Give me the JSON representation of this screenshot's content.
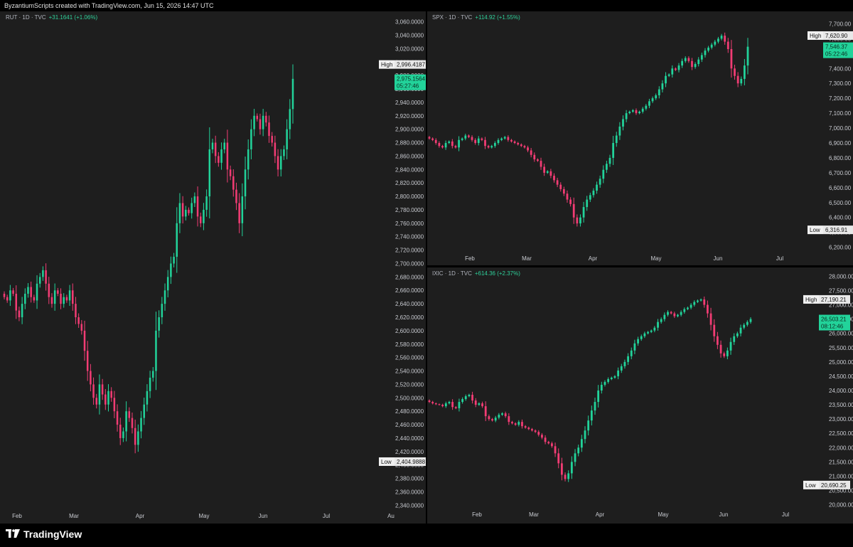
{
  "header": {
    "attribution": "ByzantiumScripts created with TradingView.com, Jun 15, 2026 14:47 UTC"
  },
  "footer": {
    "brand": "TradingView",
    "logo_icon": "tradingview-logo-icon"
  },
  "colors": {
    "up": "#22d39a",
    "down": "#f23c74",
    "background": "#1e1e1e",
    "axis_text": "#c9cbd1",
    "price_tag": "#22d39a"
  },
  "chart_data": [
    {
      "type": "candlestick",
      "symbol": "RUT",
      "legend": {
        "symbol": "RUT",
        "interval": "1D",
        "source": "TVC",
        "change": "+31.1641 (+1.06%)"
      },
      "xlabels": [
        "Feb",
        "Mar",
        "Apr",
        "May",
        "Jun",
        "Jul",
        "Au"
      ],
      "ylabels": [
        "3,060.0000",
        "3,040.0000",
        "3,020.0000",
        "3,000.0000",
        "2,980.0000",
        "2,960.0000",
        "2,940.0000",
        "2,920.0000",
        "2,900.0000",
        "2,880.0000",
        "2,860.0000",
        "2,840.0000",
        "2,820.0000",
        "2,800.0000",
        "2,780.0000",
        "2,760.0000",
        "2,740.0000",
        "2,720.0000",
        "2,700.0000",
        "2,680.0000",
        "2,660.0000",
        "2,640.0000",
        "2,620.0000",
        "2,600.0000",
        "2,580.0000",
        "2,560.0000",
        "2,540.0000",
        "2,520.0000",
        "2,500.0000",
        "2,480.0000",
        "2,460.0000",
        "2,440.0000",
        "2,420.0000",
        "2,400.0000",
        "2,380.0000",
        "2,360.0000",
        "2,340.0000"
      ],
      "ylim": [
        2334,
        3067
      ],
      "high": {
        "label": "High",
        "value": "2,996.4187"
      },
      "low": {
        "label": "Low",
        "value": "2,404.9888"
      },
      "last": {
        "price": "2,975.1564",
        "countdown": "05:27:46"
      },
      "closes": [
        2650,
        2645,
        2660,
        2655,
        2630,
        2620,
        2640,
        2655,
        2665,
        2650,
        2645,
        2670,
        2680,
        2690,
        2670,
        2650,
        2640,
        2660,
        2655,
        2640,
        2650,
        2645,
        2660,
        2640,
        2620,
        2610,
        2600,
        2570,
        2540,
        2520,
        2500,
        2490,
        2520,
        2505,
        2490,
        2510,
        2500,
        2480,
        2460,
        2440,
        2450,
        2480,
        2470,
        2455,
        2430,
        2450,
        2470,
        2490,
        2510,
        2530,
        2540,
        2600,
        2620,
        2640,
        2660,
        2680,
        2700,
        2710,
        2760,
        2790,
        2770,
        2780,
        2775,
        2790,
        2800,
        2770,
        2760,
        2780,
        2800,
        2870,
        2880,
        2860,
        2850,
        2870,
        2880,
        2840,
        2830,
        2810,
        2790,
        2760,
        2800,
        2840,
        2870,
        2900,
        2920,
        2915,
        2900,
        2920,
        2910,
        2890,
        2880,
        2860,
        2840,
        2860,
        2870,
        2900,
        2930,
        2975
      ]
    },
    {
      "type": "candlestick",
      "symbol": "SPX",
      "legend": {
        "symbol": "SPX",
        "interval": "1D",
        "source": "TVC",
        "change": "+114.92 (+1.55%)"
      },
      "xlabels": [
        "Feb",
        "Mar",
        "Apr",
        "May",
        "Jun",
        "Jul"
      ],
      "ylabels": [
        "7,700.00",
        "7,600.00",
        "7,500.00",
        "7,400.00",
        "7,300.00",
        "7,200.00",
        "7,100.00",
        "7,000.00",
        "6,900.00",
        "6,800.00",
        "6,700.00",
        "6,600.00",
        "6,500.00",
        "6,400.00",
        "6,300.00",
        "6,200.00"
      ],
      "ylim": [
        6160,
        7745
      ],
      "high": {
        "label": "High",
        "value": "7,620.90"
      },
      "low": {
        "label": "Low",
        "value": "6,316.91"
      },
      "last": {
        "price": "7,546.37",
        "countdown": "05:22:46"
      },
      "closes": [
        6930,
        6920,
        6900,
        6880,
        6870,
        6900,
        6910,
        6880,
        6870,
        6920,
        6930,
        6950,
        6940,
        6920,
        6900,
        6930,
        6920,
        6880,
        6870,
        6880,
        6900,
        6920,
        6930,
        6940,
        6920,
        6910,
        6900,
        6890,
        6880,
        6870,
        6850,
        6820,
        6790,
        6780,
        6740,
        6700,
        6710,
        6680,
        6650,
        6620,
        6590,
        6560,
        6520,
        6490,
        6400,
        6360,
        6400,
        6470,
        6520,
        6550,
        6580,
        6620,
        6660,
        6720,
        6760,
        6800,
        6900,
        6950,
        7010,
        7060,
        7100,
        7110,
        7120,
        7100,
        7110,
        7130,
        7150,
        7180,
        7200,
        7220,
        7260,
        7300,
        7350,
        7360,
        7400,
        7390,
        7420,
        7450,
        7470,
        7450,
        7410,
        7430,
        7460,
        7490,
        7520,
        7540,
        7560,
        7580,
        7600,
        7620,
        7580,
        7530,
        7400,
        7350,
        7300,
        7330,
        7420,
        7546
      ]
    },
    {
      "type": "candlestick",
      "symbol": "IXIC",
      "legend": {
        "symbol": "IXIC",
        "interval": "1D",
        "source": "TVC",
        "change": "+614.36 (+2.37%)"
      },
      "xlabels": [
        "Feb",
        "Mar",
        "Apr",
        "May",
        "Jun",
        "Jul"
      ],
      "ylabels": [
        "28,000.00",
        "27,500.00",
        "27,000.00",
        "26,500.00",
        "26,000.00",
        "25,500.00",
        "25,000.00",
        "24,500.00",
        "24,000.00",
        "23,500.00",
        "23,000.00",
        "22,500.00",
        "22,000.00",
        "21,500.00",
        "21,000.00",
        "20,500.00",
        "20,000.00"
      ],
      "ylim": [
        19840,
        28110
      ],
      "high": {
        "label": "High",
        "value": "27,190.21"
      },
      "low": {
        "label": "Low",
        "value": "20,690.25"
      },
      "last": {
        "price": "26,503.21",
        "countdown": "08:12:46"
      },
      "closes": [
        23600,
        23550,
        23520,
        23500,
        23450,
        23550,
        23600,
        23420,
        23380,
        23600,
        23700,
        23800,
        23850,
        23650,
        23500,
        23550,
        23450,
        23100,
        23000,
        22950,
        23050,
        23150,
        23200,
        23100,
        22900,
        22850,
        22800,
        22900,
        22750,
        22700,
        22650,
        22600,
        22550,
        22450,
        22350,
        22200,
        22150,
        22050,
        21800,
        21450,
        21050,
        20900,
        21100,
        21500,
        21800,
        22000,
        22300,
        22600,
        22950,
        23300,
        23600,
        24000,
        24200,
        24300,
        24400,
        24450,
        24500,
        24700,
        24850,
        25000,
        25200,
        25400,
        25650,
        25800,
        25900,
        26000,
        26050,
        26100,
        26200,
        26400,
        26500,
        26650,
        26750,
        26700,
        26600,
        26650,
        26750,
        26850,
        26900,
        27000,
        27100,
        27150,
        27190,
        27000,
        26700,
        26300,
        25900,
        25600,
        25300,
        25200,
        25400,
        25700,
        25900,
        26000,
        26200,
        26300,
        26400,
        26503
      ]
    }
  ]
}
